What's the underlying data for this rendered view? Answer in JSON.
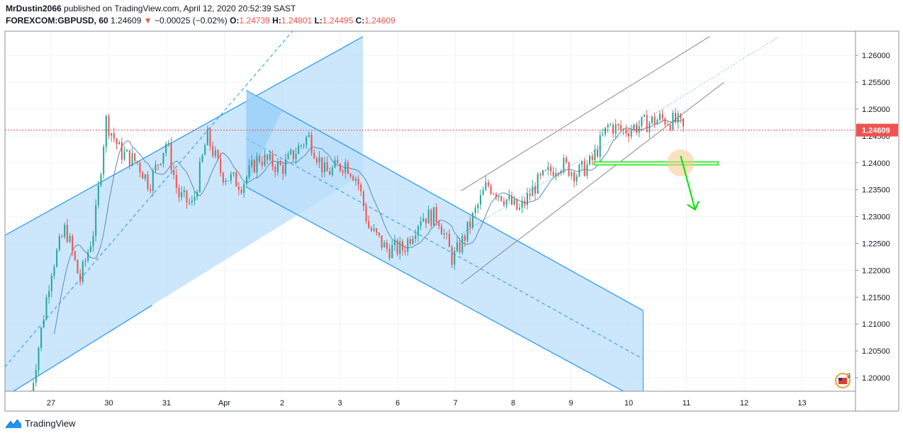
{
  "header": {
    "user": "MrDustin2066",
    "published_text": "published on TradingView.com, April 12, 2020 20:52:39 SAST",
    "symbol": "FOREXCOM:GBPUSD, 60",
    "price": "1.24609",
    "change_arrow": "▼",
    "change": "−0.00025 (−0.02%)",
    "o_label": "O:",
    "o_value": "1.24739",
    "h_label": "H:",
    "h_value": "1.24801",
    "l_label": "L:",
    "l_value": "1.24495",
    "c_label": "C:",
    "c_value": "1.24609"
  },
  "brand": {
    "name": "TradingView"
  },
  "badge": {
    "count": "3"
  },
  "colors": {
    "up": "#26a69a",
    "down": "#ef5350",
    "channel": "#2196f3",
    "channel_fill": "#bbdefb",
    "arrow": "#00e600"
  },
  "chart_data": {
    "type": "candlestick",
    "symbol": "FOREXCOM:GBPUSD",
    "timeframe": "60",
    "last_price": 1.24609,
    "y_ticks": [
      1.26,
      1.255,
      1.25,
      1.245,
      1.24,
      1.235,
      1.23,
      1.225,
      1.22,
      1.215,
      1.21,
      1.205,
      1.2
    ],
    "y_tick_labels": [
      "1.26000",
      "1.25500",
      "1.25000",
      "1.24500",
      "1.24000",
      "1.23500",
      "1.23000",
      "1.22500",
      "1.22000",
      "1.21500",
      "1.21000",
      "1.20500",
      "1.20000"
    ],
    "ylim": [
      1.1975,
      1.2645
    ],
    "x_ticks": [
      {
        "label": "27",
        "session": 0
      },
      {
        "label": "30",
        "session": 1
      },
      {
        "label": "31",
        "session": 2
      },
      {
        "label": "Apr",
        "session": 3
      },
      {
        "label": "2",
        "session": 4
      },
      {
        "label": "3",
        "session": 5
      },
      {
        "label": "6",
        "session": 6
      },
      {
        "label": "7",
        "session": 7
      },
      {
        "label": "8",
        "session": 8
      },
      {
        "label": "9",
        "session": 9
      },
      {
        "label": "10",
        "session": 10
      },
      {
        "label": "11",
        "session": 11
      },
      {
        "label": "12",
        "session": 12
      },
      {
        "label": "13",
        "session": 13
      }
    ],
    "anchors": [
      {
        "session": -0.35,
        "price": 1.197
      },
      {
        "session": 0.0,
        "price": 1.22
      },
      {
        "session": 0.25,
        "price": 1.228
      },
      {
        "session": 0.5,
        "price": 1.218
      },
      {
        "session": 0.75,
        "price": 1.228
      },
      {
        "session": 0.95,
        "price": 1.248
      },
      {
        "session": 1.2,
        "price": 1.242
      },
      {
        "session": 1.5,
        "price": 1.24
      },
      {
        "session": 1.7,
        "price": 1.236
      },
      {
        "session": 2.0,
        "price": 1.244
      },
      {
        "session": 2.2,
        "price": 1.234
      },
      {
        "session": 2.45,
        "price": 1.232
      },
      {
        "session": 2.7,
        "price": 1.245
      },
      {
        "session": 2.95,
        "price": 1.238
      },
      {
        "session": 3.3,
        "price": 1.236
      },
      {
        "session": 3.6,
        "price": 1.241
      },
      {
        "session": 4.0,
        "price": 1.239
      },
      {
        "session": 4.45,
        "price": 1.245
      },
      {
        "session": 4.75,
        "price": 1.238
      },
      {
        "session": 5.1,
        "price": 1.24
      },
      {
        "session": 5.3,
        "price": 1.237
      },
      {
        "session": 5.5,
        "price": 1.228
      },
      {
        "session": 5.8,
        "price": 1.224
      },
      {
        "session": 6.1,
        "price": 1.224
      },
      {
        "session": 6.4,
        "price": 1.23
      },
      {
        "session": 6.7,
        "price": 1.23
      },
      {
        "session": 6.95,
        "price": 1.222
      },
      {
        "session": 7.15,
        "price": 1.226
      },
      {
        "session": 7.35,
        "price": 1.231
      },
      {
        "session": 7.55,
        "price": 1.236
      },
      {
        "session": 7.8,
        "price": 1.234
      },
      {
        "session": 8.1,
        "price": 1.231
      },
      {
        "session": 8.4,
        "price": 1.236
      },
      {
        "session": 8.8,
        "price": 1.24
      },
      {
        "session": 9.1,
        "price": 1.238
      },
      {
        "session": 9.35,
        "price": 1.24
      },
      {
        "session": 9.65,
        "price": 1.247
      },
      {
        "session": 9.9,
        "price": 1.246
      },
      {
        "session": 10.2,
        "price": 1.247
      },
      {
        "session": 10.55,
        "price": 1.2482
      },
      {
        "session": 10.85,
        "price": 1.2475
      },
      {
        "session": 10.95,
        "price": 1.2461
      }
    ],
    "channels": [
      {
        "name": "rising channel (left)",
        "fill": true,
        "color": "#2196f3",
        "lower": [
          [
            -0.8,
            1.1965
          ],
          [
            1.75,
            1.2135
          ]
        ],
        "upper": [
          [
            -0.8,
            1.2265
          ],
          [
            5.4,
            1.2635
          ]
        ],
        "mid": [
          [
            -0.8,
            1.202
          ],
          [
            4.3,
            1.266
          ]
        ],
        "right_edge_session": 5.4
      },
      {
        "name": "falling channel",
        "fill": true,
        "color": "#2196f3",
        "upper": [
          [
            3.38,
            1.2535
          ],
          [
            10.25,
            1.2125
          ]
        ],
        "lower": [
          [
            3.38,
            1.2355
          ],
          [
            10.25,
            1.1955
          ]
        ],
        "mid": [
          [
            3.38,
            1.2445
          ],
          [
            10.25,
            1.2035
          ]
        ]
      },
      {
        "name": "rising channel (right)",
        "fill": false,
        "color": "#888888",
        "upper": [
          [
            7.1,
            1.2348
          ],
          [
            11.4,
            1.2635
          ]
        ],
        "lower": [
          [
            7.1,
            1.2175
          ],
          [
            11.65,
            1.255
          ]
        ],
        "mid": [
          [
            7.1,
            1.2268
          ],
          [
            12.6,
            1.2635
          ]
        ]
      }
    ],
    "annotations": {
      "support_box": {
        "from_session": 9.4,
        "to_session": 11.55,
        "price_top": 1.2402,
        "price_bottom": 1.2396
      },
      "circle": {
        "session": 10.9,
        "price": 1.24
      },
      "arrow": {
        "from": [
          10.9,
          1.2413
        ],
        "to": [
          11.15,
          1.2313
        ]
      },
      "last_price_line": 1.24609
    }
  }
}
